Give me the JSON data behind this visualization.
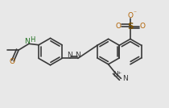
{
  "bg_color": "#e8e8e8",
  "line_color": "#3a3a3a",
  "lw": 1.2,
  "dpi": 100,
  "figsize": [
    2.1,
    1.34
  ],
  "xlim": [
    0,
    210
  ],
  "ylim": [
    0,
    134
  ],
  "sulfonate_color": "#7a5000",
  "nh_color": "#207020",
  "o_color": "#b06000",
  "dark_color": "#3a3a3a"
}
